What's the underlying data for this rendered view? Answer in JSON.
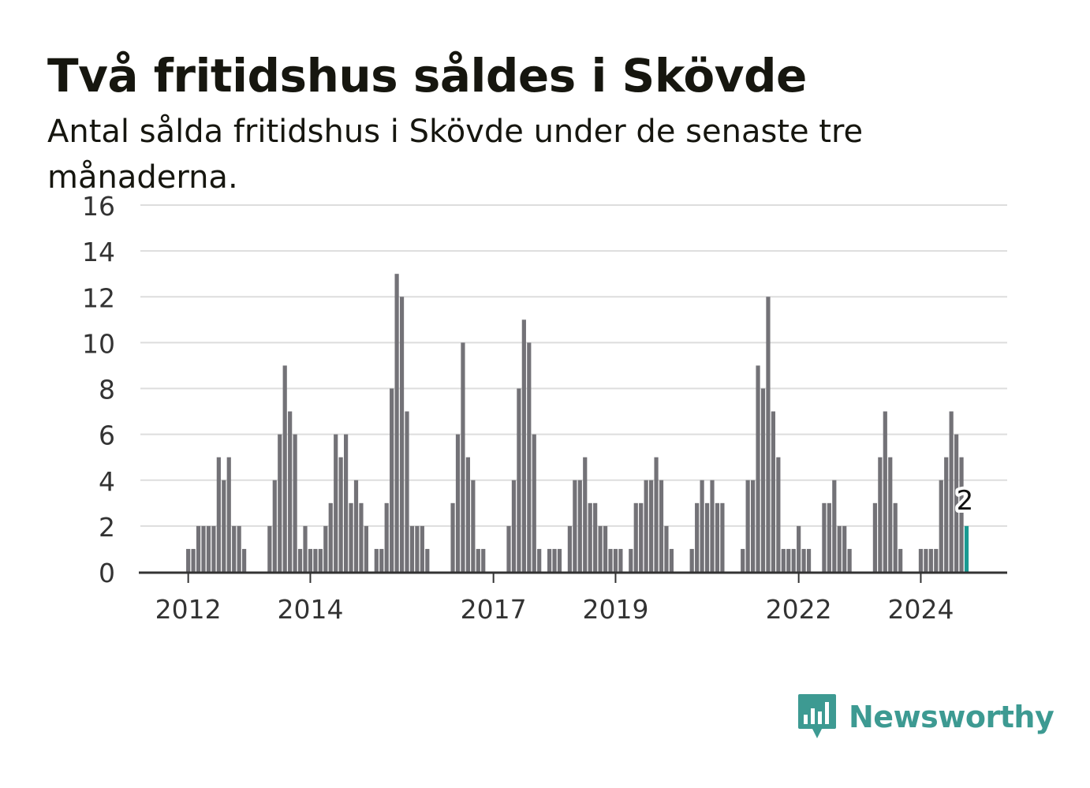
{
  "title": "Två fritidshus såldes i Skövde",
  "subtitle": "Antal sålda fritidshus i Skövde under de senaste tre månaderna.",
  "brand": {
    "name": "Newsworthy",
    "logo_icon": "bar-chart-speech-bubble-icon",
    "color": "#3d9a92"
  },
  "colors": {
    "bar": "#737277",
    "highlight": "#1a9a92",
    "grid": "#dddddd",
    "axis": "#333333"
  },
  "chart_data": {
    "type": "bar",
    "x_start": "2011-04",
    "frequency": "monthly",
    "values": [
      0,
      0,
      0,
      0,
      0,
      0,
      0,
      0,
      0,
      1,
      1,
      2,
      2,
      2,
      2,
      5,
      4,
      5,
      2,
      2,
      1,
      0,
      0,
      0,
      0,
      2,
      4,
      6,
      9,
      7,
      6,
      1,
      2,
      1,
      1,
      1,
      2,
      3,
      6,
      5,
      6,
      3,
      4,
      3,
      2,
      0,
      1,
      1,
      3,
      8,
      13,
      12,
      7,
      2,
      2,
      2,
      1,
      0,
      0,
      0,
      0,
      3,
      6,
      10,
      5,
      4,
      1,
      1,
      0,
      0,
      0,
      0,
      2,
      4,
      8,
      11,
      10,
      6,
      1,
      0,
      1,
      1,
      1,
      0,
      2,
      4,
      4,
      5,
      3,
      3,
      2,
      2,
      1,
      1,
      1,
      0,
      1,
      3,
      3,
      4,
      4,
      5,
      4,
      2,
      1,
      0,
      0,
      0,
      1,
      3,
      4,
      3,
      4,
      3,
      3,
      0,
      0,
      0,
      1,
      4,
      4,
      9,
      8,
      12,
      7,
      5,
      1,
      1,
      1,
      2,
      1,
      1,
      0,
      0,
      3,
      3,
      4,
      2,
      2,
      1,
      0,
      0,
      0,
      0,
      3,
      5,
      7,
      5,
      3,
      1,
      0,
      0,
      0,
      1,
      1,
      1,
      1,
      4,
      5,
      7,
      6,
      5,
      2
    ],
    "highlight_last": true,
    "last_value_label": "2",
    "x_ticks": [
      "2012",
      "2014",
      "2017",
      "2019",
      "2022",
      "2024"
    ],
    "x_tick_indices": [
      9,
      33,
      69,
      93,
      129,
      153
    ],
    "y_ticks": [
      0,
      2,
      4,
      6,
      8,
      10,
      12,
      14,
      16
    ],
    "ylim": [
      0,
      16
    ],
    "xlabel": "",
    "ylabel": "",
    "grid": true
  }
}
